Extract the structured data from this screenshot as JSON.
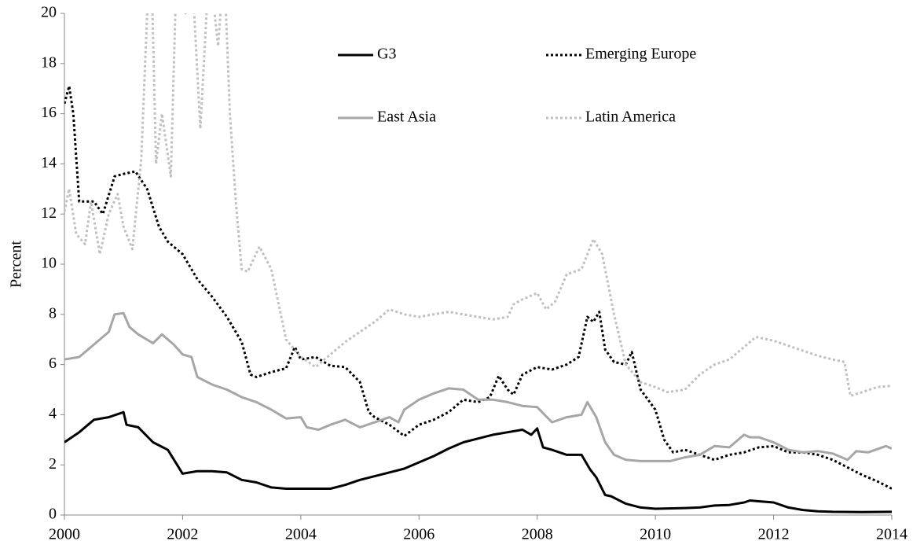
{
  "chart_data": {
    "type": "line",
    "y_label": "Percent",
    "xlim": [
      2000,
      2014
    ],
    "xticks": [
      2000,
      2002,
      2004,
      2006,
      2008,
      2010,
      2012,
      2014
    ],
    "ylim": [
      0,
      20
    ],
    "yticks": [
      0,
      2,
      4,
      6,
      8,
      10,
      12,
      14,
      16,
      18,
      20
    ],
    "legend": "top",
    "series": [
      {
        "name": "G3",
        "color": "#000000",
        "style": "solid",
        "x": [
          2000,
          2000.25,
          2000.5,
          2000.75,
          2001.0,
          2001.05,
          2001.25,
          2001.5,
          2001.75,
          2002.0,
          2002.25,
          2002.5,
          2002.75,
          2003.0,
          2003.25,
          2003.5,
          2003.75,
          2004.0,
          2004.5,
          2004.75,
          2005.0,
          2005.25,
          2005.5,
          2005.75,
          2006.0,
          2006.25,
          2006.5,
          2006.75,
          2007.0,
          2007.25,
          2007.5,
          2007.75,
          2007.9,
          2008.0,
          2008.1,
          2008.25,
          2008.5,
          2008.75,
          2008.9,
          2009.0,
          2009.15,
          2009.25,
          2009.5,
          2009.75,
          2010.0,
          2010.5,
          2010.75,
          2011.0,
          2011.25,
          2011.5,
          2011.6,
          2011.75,
          2012.0,
          2012.25,
          2012.5,
          2012.75,
          2013.0,
          2013.5,
          2014.0
        ],
        "values": [
          2.9,
          3.3,
          3.8,
          3.9,
          4.1,
          3.6,
          3.5,
          2.9,
          2.6,
          1.65,
          1.75,
          1.75,
          1.7,
          1.4,
          1.3,
          1.1,
          1.05,
          1.05,
          1.05,
          1.2,
          1.4,
          1.55,
          1.7,
          1.85,
          2.1,
          2.35,
          2.65,
          2.9,
          3.05,
          3.2,
          3.3,
          3.4,
          3.2,
          3.45,
          2.7,
          2.6,
          2.4,
          2.4,
          1.8,
          1.5,
          0.8,
          0.75,
          0.45,
          0.3,
          0.25,
          0.28,
          0.3,
          0.38,
          0.4,
          0.5,
          0.58,
          0.55,
          0.5,
          0.3,
          0.2,
          0.15,
          0.13,
          0.12,
          0.13
        ]
      },
      {
        "name": "Emerging Europe",
        "color": "#000000",
        "style": "dotted",
        "x": [
          2000,
          2000.08,
          2000.15,
          2000.25,
          2000.5,
          2000.65,
          2000.85,
          2001.0,
          2001.2,
          2001.4,
          2001.6,
          2001.75,
          2002.0,
          2002.25,
          2002.5,
          2002.75,
          2003.0,
          2003.15,
          2003.25,
          2003.5,
          2003.75,
          2003.9,
          2004.0,
          2004.25,
          2004.5,
          2004.75,
          2005.0,
          2005.15,
          2005.25,
          2005.5,
          2005.75,
          2006.0,
          2006.25,
          2006.5,
          2006.75,
          2007.0,
          2007.2,
          2007.35,
          2007.5,
          2007.6,
          2007.75,
          2008.0,
          2008.25,
          2008.5,
          2008.7,
          2008.85,
          2008.95,
          2009.05,
          2009.15,
          2009.3,
          2009.5,
          2009.6,
          2009.75,
          2010.0,
          2010.15,
          2010.3,
          2010.5,
          2010.75,
          2011.0,
          2011.25,
          2011.5,
          2011.75,
          2012.0,
          2012.25,
          2012.5,
          2012.75,
          2013.0,
          2013.25,
          2013.5,
          2013.75,
          2014.0
        ],
        "values": [
          16.4,
          17.1,
          16.0,
          12.5,
          12.5,
          12.0,
          13.5,
          13.6,
          13.7,
          13.0,
          11.5,
          10.9,
          10.4,
          9.4,
          8.7,
          7.9,
          6.9,
          5.6,
          5.5,
          5.7,
          5.85,
          6.7,
          6.2,
          6.3,
          5.95,
          5.9,
          5.3,
          4.1,
          3.9,
          3.6,
          3.15,
          3.6,
          3.8,
          4.1,
          4.6,
          4.5,
          4.7,
          5.55,
          5.0,
          4.8,
          5.6,
          5.9,
          5.8,
          6.0,
          6.3,
          7.9,
          7.7,
          8.1,
          6.6,
          6.1,
          6.0,
          6.5,
          5.0,
          4.2,
          3.0,
          2.5,
          2.6,
          2.4,
          2.2,
          2.4,
          2.5,
          2.7,
          2.75,
          2.5,
          2.5,
          2.4,
          2.2,
          1.9,
          1.6,
          1.35,
          1.05
        ]
      },
      {
        "name": "East Asia",
        "color": "#a6a6a6",
        "style": "solid",
        "x": [
          2000,
          2000.25,
          2000.5,
          2000.75,
          2000.85,
          2001.0,
          2001.1,
          2001.25,
          2001.5,
          2001.65,
          2001.85,
          2002.0,
          2002.15,
          2002.25,
          2002.5,
          2002.75,
          2003.0,
          2003.25,
          2003.5,
          2003.75,
          2004.0,
          2004.1,
          2004.3,
          2004.5,
          2004.75,
          2005.0,
          2005.25,
          2005.5,
          2005.65,
          2005.75,
          2006.0,
          2006.25,
          2006.5,
          2006.75,
          2007.0,
          2007.25,
          2007.5,
          2007.75,
          2008.0,
          2008.25,
          2008.5,
          2008.75,
          2008.85,
          2009.0,
          2009.15,
          2009.3,
          2009.5,
          2009.75,
          2010.0,
          2010.25,
          2010.5,
          2010.75,
          2011.0,
          2011.25,
          2011.5,
          2011.6,
          2011.75,
          2012.0,
          2012.25,
          2012.5,
          2012.75,
          2013.0,
          2013.25,
          2013.4,
          2013.6,
          2013.9,
          2014.0
        ],
        "values": [
          6.2,
          6.3,
          6.8,
          7.3,
          8.0,
          8.05,
          7.5,
          7.2,
          6.85,
          7.2,
          6.8,
          6.4,
          6.3,
          5.5,
          5.2,
          5.0,
          4.7,
          4.5,
          4.2,
          3.85,
          3.9,
          3.5,
          3.4,
          3.6,
          3.8,
          3.5,
          3.7,
          3.9,
          3.7,
          4.2,
          4.6,
          4.85,
          5.05,
          5.0,
          4.6,
          4.6,
          4.5,
          4.35,
          4.3,
          3.7,
          3.9,
          4.0,
          4.5,
          3.9,
          2.9,
          2.4,
          2.2,
          2.15,
          2.15,
          2.15,
          2.3,
          2.4,
          2.75,
          2.7,
          3.2,
          3.1,
          3.1,
          2.9,
          2.6,
          2.5,
          2.55,
          2.45,
          2.2,
          2.55,
          2.5,
          2.75,
          2.65
        ]
      },
      {
        "name": "Latin America",
        "color": "#c0c0c0",
        "style": "dotted",
        "x": [
          2000,
          2000.08,
          2000.2,
          2000.35,
          2000.45,
          2000.6,
          2000.75,
          2000.9,
          2001.0,
          2001.15,
          2001.3,
          2001.4,
          2001.45,
          2001.55,
          2001.65,
          2001.8,
          2001.9,
          2002.05,
          2002.15,
          2002.3,
          2002.45,
          2002.6,
          2002.7,
          2002.8,
          2002.9,
          2003.0,
          2003.1,
          2003.3,
          2003.5,
          2003.75,
          2004.0,
          2004.25,
          2004.5,
          2004.75,
          2005.0,
          2005.25,
          2005.5,
          2005.75,
          2006.0,
          2006.25,
          2006.5,
          2006.75,
          2007.0,
          2007.25,
          2007.5,
          2007.6,
          2007.75,
          2008.0,
          2008.15,
          2008.3,
          2008.5,
          2008.75,
          2008.95,
          2009.1,
          2009.3,
          2009.5,
          2009.75,
          2010.0,
          2010.2,
          2010.5,
          2010.75,
          2011.0,
          2011.25,
          2011.5,
          2011.7,
          2012.0,
          2012.25,
          2012.5,
          2012.75,
          2013.0,
          2013.2,
          2013.3,
          2013.5,
          2013.75,
          2014.0
        ],
        "values": [
          12.1,
          13.0,
          11.2,
          10.8,
          12.5,
          10.4,
          12.0,
          12.8,
          11.5,
          10.6,
          14.2,
          20,
          24,
          14.0,
          16.0,
          13.5,
          22,
          20,
          22,
          15.4,
          22,
          18.7,
          22,
          16.0,
          12.5,
          9.8,
          9.7,
          10.7,
          9.8,
          7.0,
          6.3,
          5.9,
          6.4,
          6.9,
          7.3,
          7.7,
          8.2,
          8.0,
          7.9,
          8.0,
          8.1,
          8.0,
          7.9,
          7.8,
          7.9,
          8.4,
          8.6,
          8.85,
          8.2,
          8.5,
          9.6,
          9.8,
          11.0,
          10.4,
          8.0,
          6.0,
          5.3,
          5.1,
          4.9,
          5.0,
          5.6,
          6.0,
          6.2,
          6.7,
          7.1,
          6.95,
          6.75,
          6.55,
          6.35,
          6.2,
          6.1,
          4.75,
          4.9,
          5.1,
          5.15
        ]
      }
    ]
  }
}
